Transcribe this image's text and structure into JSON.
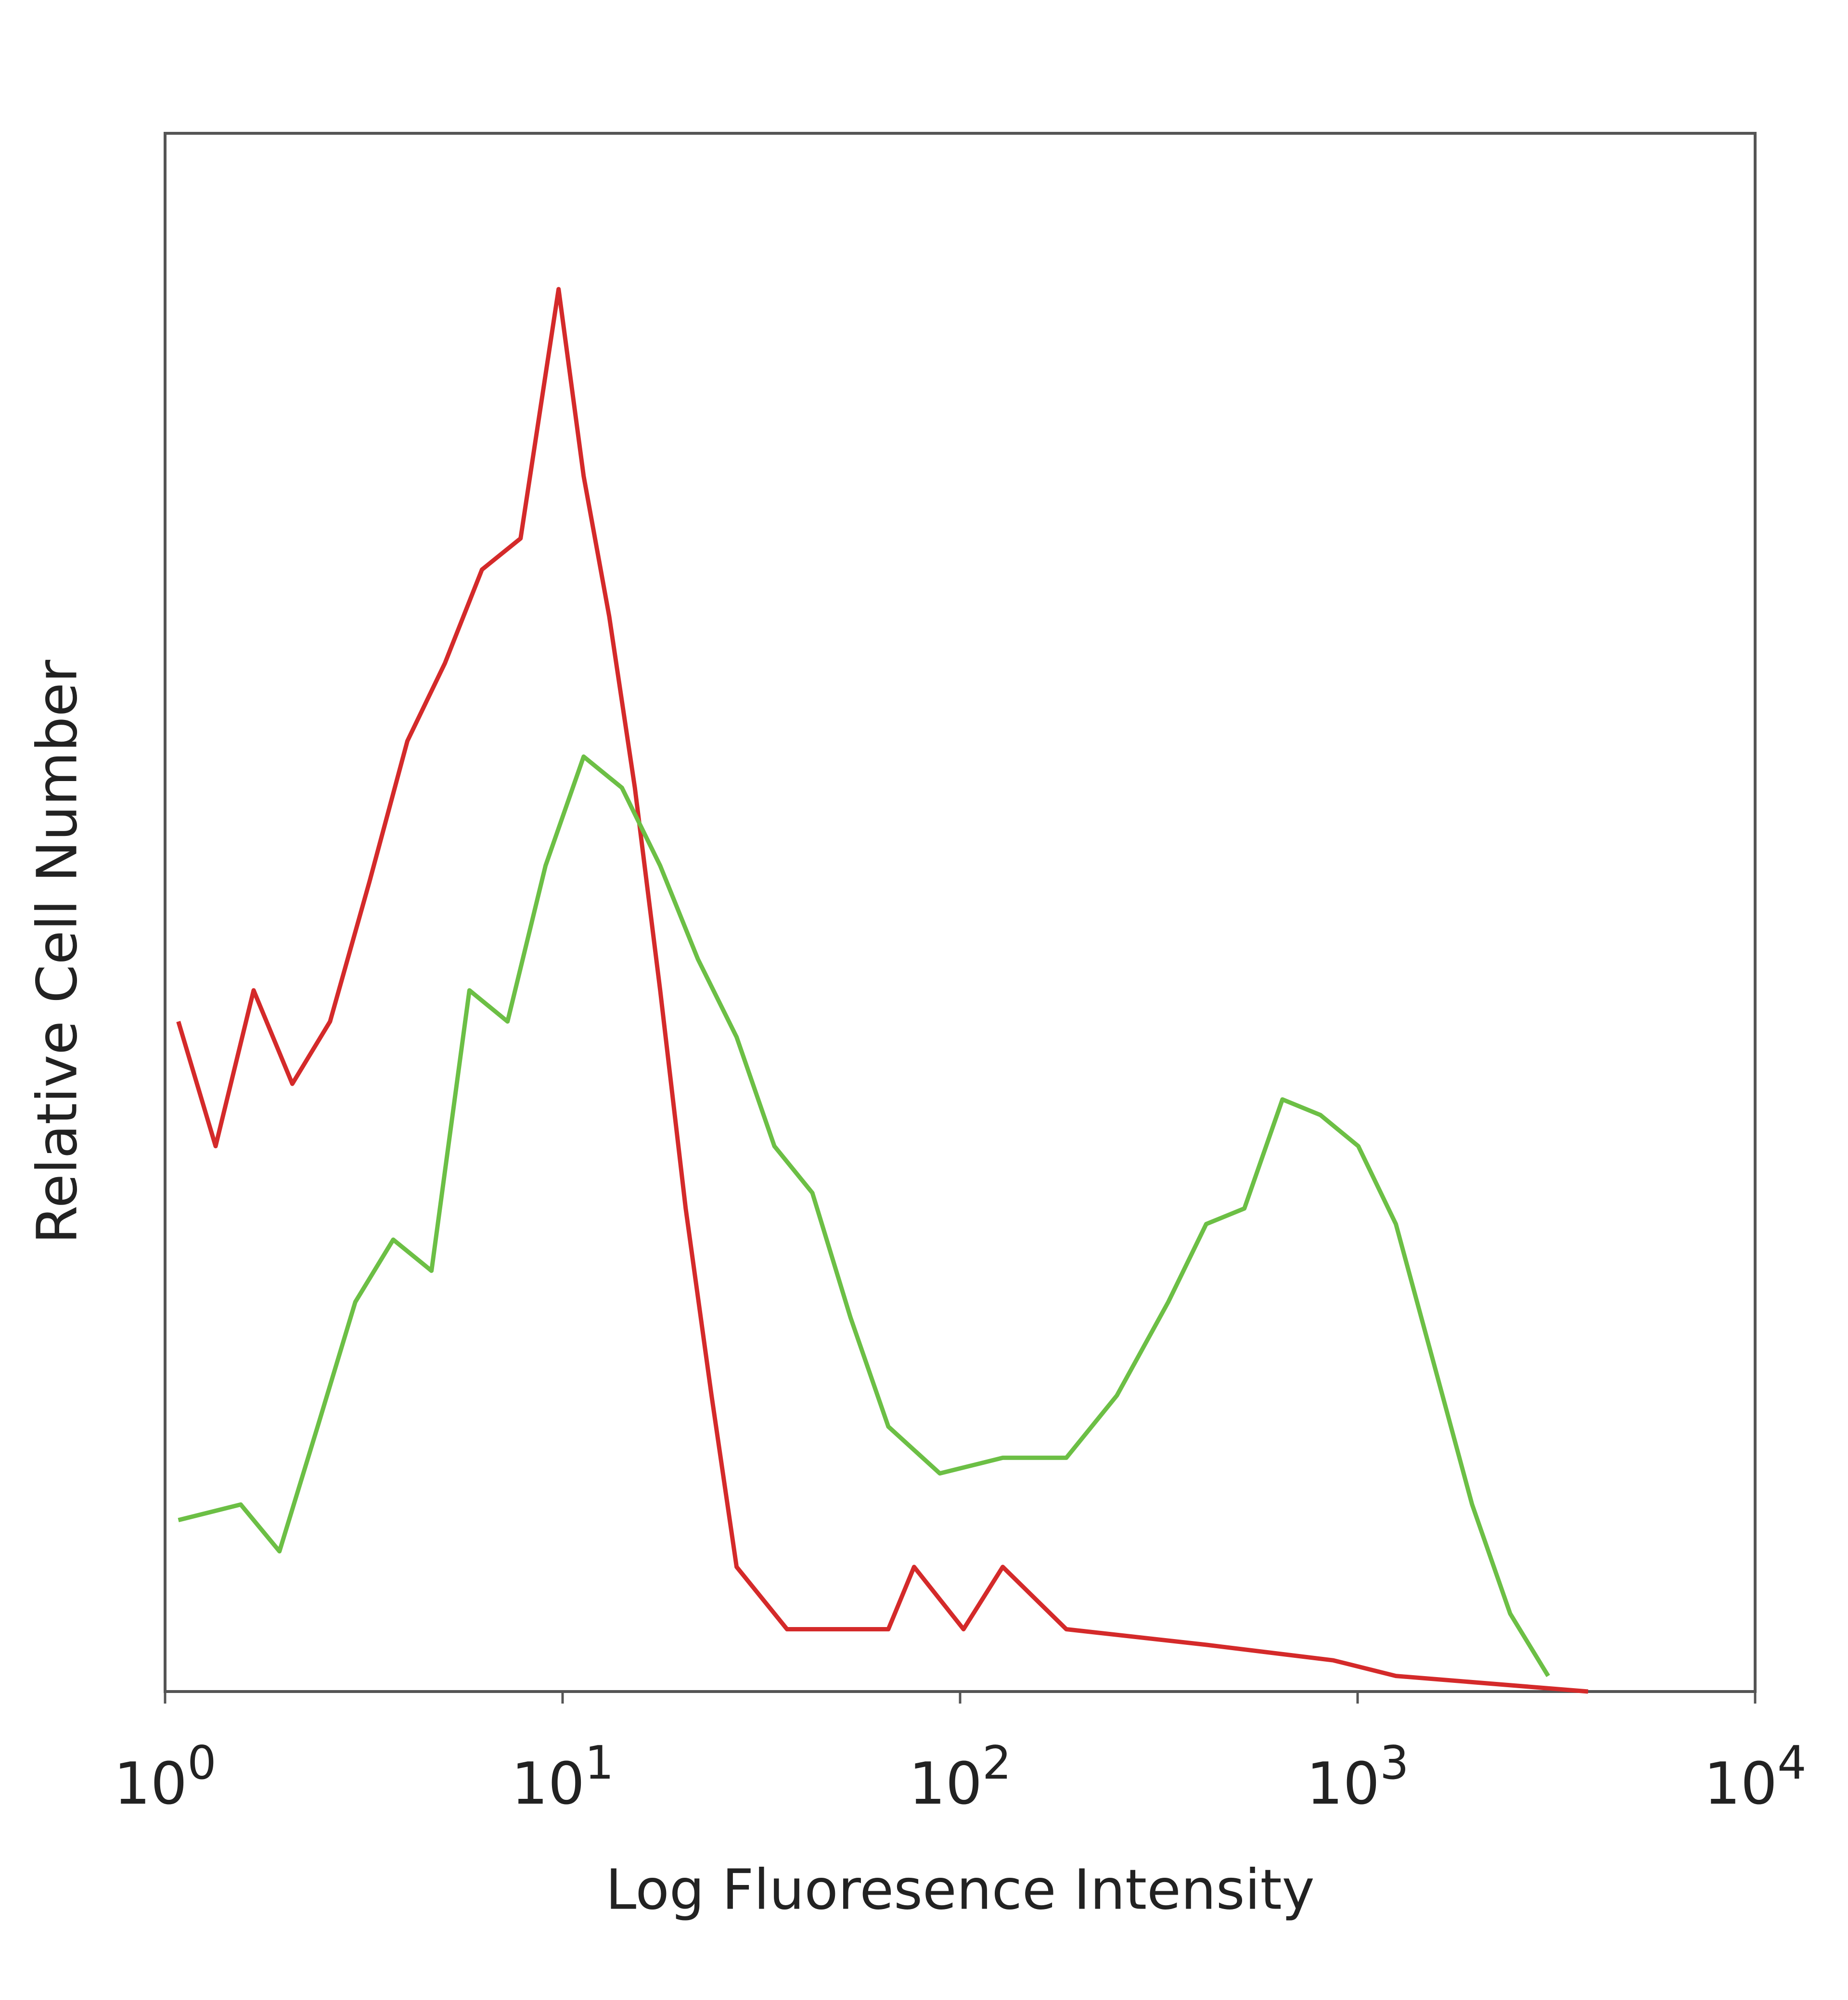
{
  "chart_data": {
    "type": "histogram-line",
    "x_label": "Log Fluoresence Intensity",
    "y_label": "Relative Cell Number",
    "xscale": "log",
    "xlim": [
      1,
      10000
    ],
    "ylim": [
      0,
      100
    ],
    "xticks": [
      {
        "value": 1,
        "label": "10",
        "exponent": "0"
      },
      {
        "value": 10,
        "label": "10",
        "exponent": "1"
      },
      {
        "value": 100,
        "label": "10",
        "exponent": "2"
      },
      {
        "value": 1000,
        "label": "10",
        "exponent": "3"
      },
      {
        "value": 10000,
        "label": "10",
        "exponent": "4"
      }
    ],
    "series": [
      {
        "color": "#d42a2a",
        "x": [
          1.08,
          1.34,
          1.67,
          2.09,
          2.6,
          3.27,
          4.07,
          5.06,
          6.27,
          7.84,
          9.77,
          11.3,
          13.1,
          15.2,
          17.6,
          20.4,
          23.7,
          27.4,
          36.7,
          66,
          76.6,
          102,
          128,
          185,
          416,
          869,
          1248,
          3800
        ],
        "values": [
          43,
          35,
          45,
          39,
          43,
          52,
          61,
          66,
          72,
          74,
          90,
          78,
          69,
          58,
          45,
          31,
          19,
          8,
          4,
          4,
          8,
          4,
          8,
          4,
          3,
          2,
          1,
          0
        ]
      },
      {
        "color": "#6cbf45",
        "x": [
          1.08,
          1.55,
          1.94,
          2.42,
          3.01,
          3.75,
          4.68,
          5.83,
          7.27,
          9.06,
          11.3,
          14.1,
          17.6,
          21.9,
          27.4,
          34.1,
          42.5,
          53,
          66,
          88.9,
          128,
          185,
          248,
          334,
          416,
          519,
          647,
          806,
          1004,
          1248,
          1557,
          1941,
          2420,
          3016
        ],
        "values": [
          11,
          12,
          9,
          17,
          25,
          29,
          27,
          45,
          43,
          53,
          60,
          58,
          53,
          47,
          42,
          35,
          32,
          24,
          17,
          14,
          15,
          15,
          19,
          25,
          30,
          31,
          38,
          37,
          35,
          30,
          21,
          12,
          5,
          1
        ]
      }
    ]
  }
}
